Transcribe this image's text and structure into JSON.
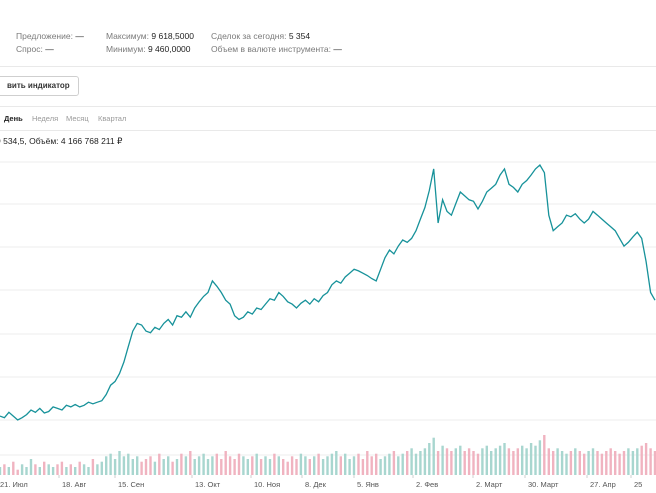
{
  "stats": {
    "bid_label": "Предложение:",
    "bid_value": "—",
    "ask_label": "Спрос:",
    "ask_value": "—",
    "max_label": "Максимум:",
    "max_value": "9 618,5000",
    "min_label": "Минимум:",
    "min_value": "9 460,0000",
    "deals_label": "Сделок за сегодня:",
    "deals_value": "5 354",
    "volume_label": "Объем в валюте инструмента:",
    "volume_value": "—"
  },
  "toolbar": {
    "add_indicator_label": "вить индикатор"
  },
  "tabs": [
    {
      "label": "День",
      "active": true
    },
    {
      "label": "Неделя",
      "active": false
    },
    {
      "label": "Месяц",
      "active": false
    },
    {
      "label": "Квартал",
      "active": false
    }
  ],
  "chart_info": {
    "text": "9 534,5, Объём: 4 166 768 211 ₽"
  },
  "colors": {
    "line": "#17929a",
    "volume_up": "#a8d6cf",
    "volume_down": "#f0b3c0",
    "grid": "#ececec"
  },
  "chart_data": {
    "type": "line",
    "x_tick_labels": [
      "21. Июл",
      "18. Авг",
      "15. Сен",
      "13. Окт",
      "10. Ноя",
      "8. Дек",
      "5. Янв",
      "2. Фев",
      "2. Март",
      "30. Март",
      "27. Апр",
      "25"
    ],
    "price_series": [
      400,
      398,
      405,
      400,
      395,
      398,
      402,
      408,
      405,
      410,
      404,
      406,
      412,
      410,
      408,
      414,
      412,
      415,
      412,
      414,
      418,
      416,
      418,
      420,
      428,
      440,
      445,
      455,
      470,
      490,
      510,
      520,
      518,
      510,
      508,
      515,
      512,
      520,
      525,
      518,
      530,
      528,
      535,
      528,
      540,
      548,
      555,
      560,
      575,
      568,
      560,
      550,
      545,
      530,
      525,
      528,
      535,
      532,
      540,
      538,
      545,
      552,
      550,
      560,
      555,
      548,
      545,
      540,
      546,
      550,
      545,
      552,
      548,
      556,
      560,
      570,
      575,
      572,
      580,
      585,
      590,
      588,
      585,
      582,
      578,
      575,
      590,
      605,
      615,
      610,
      620,
      628,
      625,
      630,
      640,
      655,
      670,
      692,
      720,
      650,
      680,
      665,
      660,
      675,
      690,
      685,
      680,
      678,
      668,
      678,
      690,
      695,
      700,
      712,
      720,
      700,
      696,
      690,
      700,
      705,
      712,
      720,
      725,
      715,
      660,
      640,
      645,
      650,
      660,
      658,
      662,
      655,
      650,
      655,
      665,
      660,
      655,
      650,
      645,
      640,
      630,
      620,
      625,
      632,
      638,
      630,
      600,
      560,
      550
    ],
    "volume_series": [
      3,
      4,
      3,
      5,
      2,
      4,
      3,
      6,
      4,
      3,
      5,
      4,
      3,
      4,
      5,
      3,
      4,
      3,
      5,
      4,
      3,
      6,
      4,
      5,
      7,
      8,
      6,
      9,
      7,
      8,
      6,
      7,
      5,
      6,
      7,
      5,
      8,
      6,
      7,
      5,
      6,
      8,
      7,
      9,
      6,
      7,
      8,
      6,
      7,
      8,
      6,
      9,
      7,
      6,
      8,
      7,
      6,
      7,
      8,
      6,
      7,
      6,
      8,
      7,
      6,
      5,
      7,
      6,
      8,
      7,
      6,
      7,
      8,
      6,
      7,
      8,
      9,
      7,
      8,
      6,
      7,
      8,
      6,
      9,
      7,
      8,
      6,
      7,
      8,
      9,
      7,
      8,
      9,
      10,
      8,
      9,
      10,
      12,
      14,
      9,
      11,
      10,
      9,
      10,
      11,
      9,
      10,
      9,
      8,
      10,
      11,
      9,
      10,
      11,
      12,
      10,
      9,
      10,
      11,
      10,
      12,
      11,
      13,
      15,
      10,
      9,
      10,
      9,
      8,
      9,
      10,
      9,
      8,
      9,
      10,
      9,
      8,
      9,
      10,
      9,
      8,
      9,
      10,
      9,
      10,
      11,
      12,
      10,
      9
    ],
    "grid": true
  }
}
